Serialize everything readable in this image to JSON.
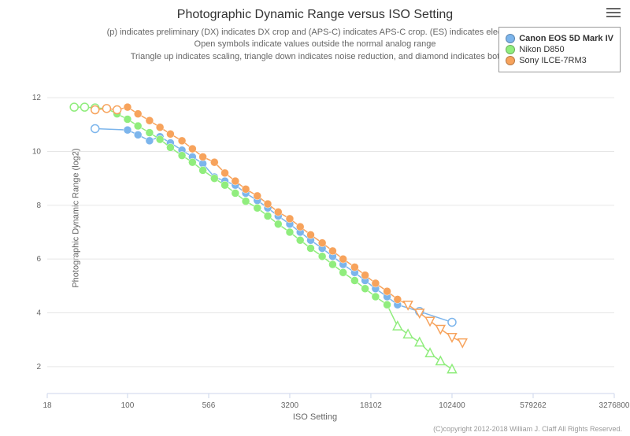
{
  "title": "Photographic Dynamic Range versus ISO Setting",
  "subtitle_lines": [
    "(p) indicates preliminary (DX) indicates DX crop and (APS-C) indicates APS-C crop. (ES) indicates electronic",
    "Open symbols indicate values outside the normal analog range",
    "Triangle up indicates scaling, triangle down indicates noise reduction, and diamond indicates bot"
  ],
  "y_axis_title": "Photographic Dynamic Range (log2)",
  "x_axis_title": "ISO Setting",
  "credits": "(C)copyright 2012-2018 William J. Claff All Rights Reserved.",
  "menu_label": "Chart context menu",
  "chart": {
    "type": "line-scatter",
    "background_color": "#ffffff",
    "grid_color": "#e6e6e6",
    "axis_line_color": "#ccd6eb",
    "text_color": "#666666",
    "title_fontsize": 16,
    "subtitle_fontsize": 11,
    "label_fontsize": 10,
    "x_scale": "log",
    "x_ticks": [
      18,
      100,
      566,
      3200,
      18102,
      102400,
      579262,
      3276800
    ],
    "y_ticks": [
      2,
      4,
      6,
      8,
      10,
      12
    ],
    "xlim": [
      18,
      3276800
    ],
    "ylim": [
      1,
      13
    ],
    "marker_radius": 5,
    "line_width": 1.5,
    "series": [
      {
        "name": "Canon EOS 5D Mark IV",
        "color": "#7cb5ec",
        "bold": true,
        "data": [
          {
            "x": 50,
            "y": 10.85,
            "m": "open-circle"
          },
          {
            "x": 100,
            "y": 10.8,
            "m": "circle"
          },
          {
            "x": 125,
            "y": 10.62,
            "m": "circle"
          },
          {
            "x": 160,
            "y": 10.4,
            "m": "circle"
          },
          {
            "x": 200,
            "y": 10.55,
            "m": "circle"
          },
          {
            "x": 250,
            "y": 10.32,
            "m": "circle"
          },
          {
            "x": 320,
            "y": 10.05,
            "m": "circle"
          },
          {
            "x": 400,
            "y": 9.8,
            "m": "circle"
          },
          {
            "x": 500,
            "y": 9.55,
            "m": "circle"
          },
          {
            "x": 640,
            "y": 9.05,
            "m": "circle"
          },
          {
            "x": 800,
            "y": 8.9,
            "m": "circle"
          },
          {
            "x": 1000,
            "y": 8.75,
            "m": "circle"
          },
          {
            "x": 1250,
            "y": 8.45,
            "m": "circle"
          },
          {
            "x": 1600,
            "y": 8.18,
            "m": "circle"
          },
          {
            "x": 2000,
            "y": 7.9,
            "m": "circle"
          },
          {
            "x": 2500,
            "y": 7.6,
            "m": "circle"
          },
          {
            "x": 3200,
            "y": 7.3,
            "m": "circle"
          },
          {
            "x": 4000,
            "y": 7.0,
            "m": "circle"
          },
          {
            "x": 5000,
            "y": 6.7,
            "m": "circle"
          },
          {
            "x": 6400,
            "y": 6.4,
            "m": "circle"
          },
          {
            "x": 8000,
            "y": 6.1,
            "m": "circle"
          },
          {
            "x": 10000,
            "y": 5.8,
            "m": "circle"
          },
          {
            "x": 12800,
            "y": 5.5,
            "m": "circle"
          },
          {
            "x": 16000,
            "y": 5.2,
            "m": "circle"
          },
          {
            "x": 20000,
            "y": 4.9,
            "m": "circle"
          },
          {
            "x": 25600,
            "y": 4.6,
            "m": "circle"
          },
          {
            "x": 32000,
            "y": 4.3,
            "m": "circle"
          },
          {
            "x": 51200,
            "y": 4.05,
            "m": "open-circle"
          },
          {
            "x": 102400,
            "y": 3.65,
            "m": "open-circle"
          }
        ]
      },
      {
        "name": "Nikon D850",
        "color": "#90ed7d",
        "bold": false,
        "data": [
          {
            "x": 32,
            "y": 11.65,
            "m": "open-circle"
          },
          {
            "x": 40,
            "y": 11.65,
            "m": "open-circle"
          },
          {
            "x": 50,
            "y": 11.62,
            "m": "open-circle"
          },
          {
            "x": 64,
            "y": 11.6,
            "m": "circle"
          },
          {
            "x": 80,
            "y": 11.4,
            "m": "circle"
          },
          {
            "x": 100,
            "y": 11.2,
            "m": "circle"
          },
          {
            "x": 125,
            "y": 10.95,
            "m": "circle"
          },
          {
            "x": 160,
            "y": 10.7,
            "m": "circle"
          },
          {
            "x": 200,
            "y": 10.45,
            "m": "circle"
          },
          {
            "x": 250,
            "y": 10.15,
            "m": "circle"
          },
          {
            "x": 320,
            "y": 9.85,
            "m": "circle"
          },
          {
            "x": 400,
            "y": 9.6,
            "m": "circle"
          },
          {
            "x": 500,
            "y": 9.3,
            "m": "circle"
          },
          {
            "x": 640,
            "y": 9.0,
            "m": "circle"
          },
          {
            "x": 800,
            "y": 8.75,
            "m": "circle"
          },
          {
            "x": 1000,
            "y": 8.45,
            "m": "circle"
          },
          {
            "x": 1250,
            "y": 8.15,
            "m": "circle"
          },
          {
            "x": 1600,
            "y": 7.9,
            "m": "circle"
          },
          {
            "x": 2000,
            "y": 7.6,
            "m": "circle"
          },
          {
            "x": 2500,
            "y": 7.3,
            "m": "circle"
          },
          {
            "x": 3200,
            "y": 7.0,
            "m": "circle"
          },
          {
            "x": 4000,
            "y": 6.7,
            "m": "circle"
          },
          {
            "x": 5000,
            "y": 6.4,
            "m": "circle"
          },
          {
            "x": 6400,
            "y": 6.1,
            "m": "circle"
          },
          {
            "x": 8000,
            "y": 5.8,
            "m": "circle"
          },
          {
            "x": 10000,
            "y": 5.5,
            "m": "circle"
          },
          {
            "x": 12800,
            "y": 5.2,
            "m": "circle"
          },
          {
            "x": 16000,
            "y": 4.9,
            "m": "circle"
          },
          {
            "x": 20000,
            "y": 4.6,
            "m": "circle"
          },
          {
            "x": 25600,
            "y": 4.3,
            "m": "circle"
          },
          {
            "x": 32000,
            "y": 3.5,
            "m": "open-tri-up"
          },
          {
            "x": 40000,
            "y": 3.2,
            "m": "open-tri-up"
          },
          {
            "x": 51200,
            "y": 2.9,
            "m": "open-tri-up"
          },
          {
            "x": 64000,
            "y": 2.5,
            "m": "open-tri-up"
          },
          {
            "x": 80000,
            "y": 2.2,
            "m": "open-tri-up"
          },
          {
            "x": 102400,
            "y": 1.9,
            "m": "open-tri-up"
          }
        ]
      },
      {
        "name": "Sony ILCE-7RM3",
        "color": "#f7a35c",
        "bold": false,
        "data": [
          {
            "x": 50,
            "y": 11.55,
            "m": "open-circle"
          },
          {
            "x": 64,
            "y": 11.6,
            "m": "open-circle"
          },
          {
            "x": 80,
            "y": 11.55,
            "m": "open-circle"
          },
          {
            "x": 100,
            "y": 11.65,
            "m": "circle"
          },
          {
            "x": 125,
            "y": 11.4,
            "m": "circle"
          },
          {
            "x": 160,
            "y": 11.15,
            "m": "circle"
          },
          {
            "x": 200,
            "y": 10.9,
            "m": "circle"
          },
          {
            "x": 250,
            "y": 10.65,
            "m": "circle"
          },
          {
            "x": 320,
            "y": 10.4,
            "m": "circle"
          },
          {
            "x": 400,
            "y": 10.1,
            "m": "circle"
          },
          {
            "x": 500,
            "y": 9.8,
            "m": "circle"
          },
          {
            "x": 640,
            "y": 9.6,
            "m": "circle"
          },
          {
            "x": 800,
            "y": 9.2,
            "m": "circle"
          },
          {
            "x": 1000,
            "y": 8.9,
            "m": "circle"
          },
          {
            "x": 1250,
            "y": 8.6,
            "m": "circle"
          },
          {
            "x": 1600,
            "y": 8.35,
            "m": "circle"
          },
          {
            "x": 2000,
            "y": 8.05,
            "m": "circle"
          },
          {
            "x": 2500,
            "y": 7.75,
            "m": "circle"
          },
          {
            "x": 3200,
            "y": 7.5,
            "m": "circle"
          },
          {
            "x": 4000,
            "y": 7.2,
            "m": "circle"
          },
          {
            "x": 5000,
            "y": 6.9,
            "m": "circle"
          },
          {
            "x": 6400,
            "y": 6.6,
            "m": "circle"
          },
          {
            "x": 8000,
            "y": 6.3,
            "m": "circle"
          },
          {
            "x": 10000,
            "y": 6.0,
            "m": "circle"
          },
          {
            "x": 12800,
            "y": 5.7,
            "m": "circle"
          },
          {
            "x": 16000,
            "y": 5.4,
            "m": "circle"
          },
          {
            "x": 20000,
            "y": 5.1,
            "m": "circle"
          },
          {
            "x": 25600,
            "y": 4.8,
            "m": "circle"
          },
          {
            "x": 32000,
            "y": 4.5,
            "m": "circle"
          },
          {
            "x": 40000,
            "y": 4.3,
            "m": "open-tri-down"
          },
          {
            "x": 51200,
            "y": 4.0,
            "m": "open-tri-down"
          },
          {
            "x": 64000,
            "y": 3.7,
            "m": "open-tri-down"
          },
          {
            "x": 80000,
            "y": 3.4,
            "m": "open-tri-down"
          },
          {
            "x": 102400,
            "y": 3.1,
            "m": "open-tri-down"
          },
          {
            "x": 128000,
            "y": 2.9,
            "m": "open-tri-down"
          }
        ]
      }
    ]
  }
}
